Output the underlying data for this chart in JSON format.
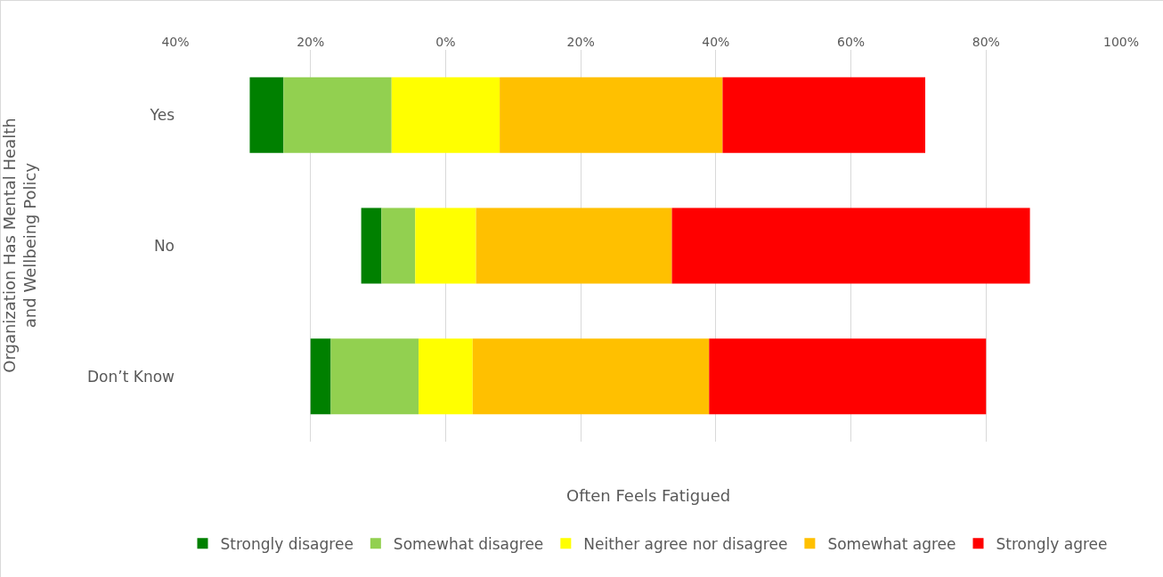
{
  "chart_data": {
    "type": "bar",
    "orientation": "horizontal",
    "categories": [
      "Yes",
      "No",
      "Don’t Know"
    ],
    "series": [
      {
        "name": "Strongly disagree",
        "color": "#008000",
        "base": [
          -29,
          -12.5,
          -20
        ],
        "values": [
          5,
          3,
          3
        ]
      },
      {
        "name": "Somewhat disagree",
        "color": "#92d050",
        "base": [
          -24,
          -9.5,
          -17
        ],
        "values": [
          16,
          5,
          13
        ]
      },
      {
        "name": "Neither agree nor disagree",
        "color": "#ffff00",
        "base": [
          -8,
          -4.5,
          -4
        ],
        "values": [
          16,
          9,
          8
        ]
      },
      {
        "name": "Somewhat agree",
        "color": "#ffc000",
        "base": [
          8,
          4.5,
          4
        ],
        "values": [
          33,
          29,
          35
        ]
      },
      {
        "name": "Strongly agree",
        "color": "#ff0000",
        "base": [
          41,
          33.5,
          39
        ],
        "values": [
          30,
          53,
          41
        ]
      }
    ],
    "xlim": [
      -40,
      100
    ],
    "xticks": [
      {
        "value": -40,
        "label": "40%"
      },
      {
        "value": -20,
        "label": "20%"
      },
      {
        "value": 0,
        "label": "0%"
      },
      {
        "value": 20,
        "label": "20%"
      },
      {
        "value": 40,
        "label": "40%"
      },
      {
        "value": 60,
        "label": "60%"
      },
      {
        "value": 80,
        "label": "80%"
      },
      {
        "value": 100,
        "label": "100%"
      }
    ],
    "xlabel": "Often Feels Fatigued",
    "ylabel": "Organization Has Mental Health\nand Wellbeing Policy",
    "grid": "x",
    "legend": "bottom"
  }
}
